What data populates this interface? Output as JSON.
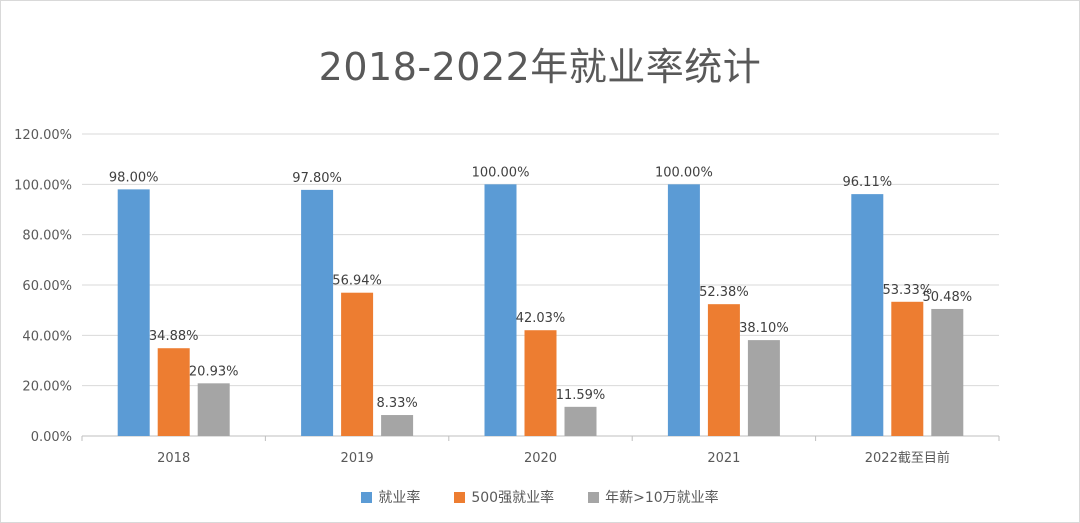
{
  "chart_data": {
    "type": "bar",
    "title": "2018-2022年就业率统计",
    "categories": [
      "2018",
      "2019",
      "2020",
      "2021",
      "2022截至目前"
    ],
    "series": [
      {
        "name": "就业率",
        "color": "#5b9bd5",
        "values": [
          98.0,
          97.8,
          100.0,
          100.0,
          96.11
        ],
        "labels": [
          "98.00%",
          "97.80%",
          "100.00%",
          "100.00%",
          "96.11%"
        ]
      },
      {
        "name": "500强就业率",
        "color": "#ed7d31",
        "values": [
          34.88,
          56.94,
          42.03,
          52.38,
          53.33
        ],
        "labels": [
          "34.88%",
          "56.94%",
          "42.03%",
          "52.38%",
          "53.33%"
        ]
      },
      {
        "name": "年薪>10万就业率",
        "color": "#a5a5a5",
        "values": [
          20.93,
          8.33,
          11.59,
          38.1,
          50.48
        ],
        "labels": [
          "20.93%",
          "8.33%",
          "11.59%",
          "38.10%",
          "50.48%"
        ]
      }
    ],
    "y_ticks": [
      "0.00%",
      "20.00%",
      "40.00%",
      "60.00%",
      "80.00%",
      "100.00%",
      "120.00%"
    ],
    "ylim": [
      0,
      120
    ],
    "xlabel": "",
    "ylabel": "",
    "grid": true,
    "legend_position": "bottom"
  }
}
